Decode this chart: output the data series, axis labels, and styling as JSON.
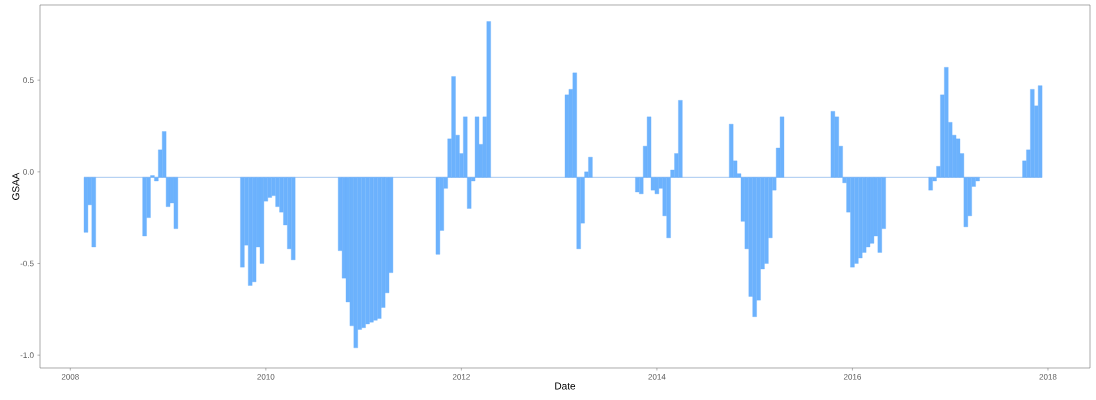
{
  "chart_data": {
    "type": "bar",
    "xlabel": "Date",
    "ylabel": "GSAA",
    "color": "#6cb2fd",
    "xlim": [
      2007.69,
      2018.43
    ],
    "ylim": [
      -1.07,
      0.91
    ],
    "xticks": [
      2008,
      2010,
      2012,
      2014,
      2016,
      2018
    ],
    "yticks": [
      {
        "value": -1,
        "label": "-1.0"
      },
      {
        "value": -0.5,
        "label": "-0.5"
      },
      {
        "value": 0,
        "label": "0.0"
      },
      0.5
    ],
    "ref_lines": [
      {
        "axis": "y",
        "value": -0.03,
        "color": "#6ca4e8"
      }
    ],
    "x": [
      2008.16,
      2008.2,
      2008.24,
      2008.76,
      2008.8,
      2008.84,
      2008.88,
      2008.92,
      2008.96,
      2009.0,
      2009.04,
      2009.08,
      2009.76,
      2009.8,
      2009.84,
      2009.88,
      2009.92,
      2009.96,
      2010.0,
      2010.04,
      2010.08,
      2010.12,
      2010.16,
      2010.2,
      2010.24,
      2010.28,
      2010.76,
      2010.8,
      2010.84,
      2010.88,
      2010.92,
      2010.96,
      2011.0,
      2011.04,
      2011.08,
      2011.12,
      2011.16,
      2011.2,
      2011.24,
      2011.28,
      2011.76,
      2011.8,
      2011.84,
      2011.88,
      2011.92,
      2011.96,
      2012.0,
      2012.04,
      2012.08,
      2012.12,
      2012.16,
      2012.2,
      2012.24,
      2012.28,
      2013.08,
      2013.12,
      2013.16,
      2013.2,
      2013.24,
      2013.28,
      2013.32,
      2013.8,
      2013.84,
      2013.88,
      2013.92,
      2013.96,
      2014.0,
      2014.04,
      2014.08,
      2014.12,
      2014.16,
      2014.2,
      2014.24,
      2014.76,
      2014.8,
      2014.84,
      2014.88,
      2014.92,
      2014.96,
      2015.0,
      2015.04,
      2015.08,
      2015.12,
      2015.16,
      2015.2,
      2015.24,
      2015.28,
      2015.8,
      2015.84,
      2015.88,
      2015.92,
      2015.96,
      2016.0,
      2016.04,
      2016.08,
      2016.12,
      2016.16,
      2016.2,
      2016.24,
      2016.28,
      2016.32,
      2016.8,
      2016.84,
      2016.88,
      2016.92,
      2016.96,
      2017.0,
      2017.04,
      2017.08,
      2017.12,
      2017.16,
      2017.2,
      2017.24,
      2017.28,
      2017.76,
      2017.8,
      2017.84,
      2017.88,
      2017.92
    ],
    "values": [
      -0.3,
      -0.15,
      -0.38,
      -0.32,
      -0.22,
      0.01,
      -0.02,
      0.15,
      0.25,
      -0.16,
      -0.14,
      -0.28,
      -0.49,
      -0.37,
      -0.59,
      -0.57,
      -0.38,
      -0.47,
      -0.13,
      -0.11,
      -0.1,
      -0.16,
      -0.19,
      -0.26,
      -0.39,
      -0.45,
      -0.4,
      -0.55,
      -0.68,
      -0.81,
      -0.93,
      -0.83,
      -0.82,
      -0.8,
      -0.79,
      -0.78,
      -0.77,
      -0.71,
      -0.63,
      -0.52,
      -0.42,
      -0.29,
      -0.06,
      0.21,
      0.55,
      0.23,
      0.13,
      0.33,
      -0.17,
      -0.02,
      0.33,
      0.18,
      0.33,
      0.85,
      0.45,
      0.48,
      0.57,
      -0.39,
      -0.25,
      0.03,
      0.11,
      -0.08,
      -0.09,
      0.17,
      0.33,
      -0.07,
      -0.09,
      -0.06,
      -0.21,
      -0.33,
      0.04,
      0.13,
      0.42,
      0.29,
      0.09,
      0.02,
      -0.24,
      -0.39,
      -0.65,
      -0.76,
      -0.67,
      -0.5,
      -0.47,
      -0.33,
      -0.07,
      0.16,
      0.33,
      0.36,
      0.33,
      0.17,
      -0.03,
      -0.19,
      -0.49,
      -0.47,
      -0.44,
      -0.41,
      -0.38,
      -0.36,
      -0.32,
      -0.41,
      -0.28,
      -0.07,
      -0.02,
      0.06,
      0.45,
      0.6,
      0.3,
      0.23,
      0.21,
      0.13,
      -0.27,
      -0.21,
      -0.05,
      -0.02,
      0.09,
      0.15,
      0.48,
      0.39,
      0.5
    ],
    "base": [
      -0.03,
      -0.03,
      -0.03,
      -0.03,
      -0.03,
      -0.03,
      -0.03,
      -0.03,
      -0.03,
      -0.03,
      -0.03,
      -0.03,
      -0.03,
      -0.03,
      -0.03,
      -0.03,
      -0.03,
      -0.03,
      -0.03,
      -0.03,
      -0.03,
      -0.03,
      -0.03,
      -0.03,
      -0.03,
      -0.03,
      -0.03,
      -0.03,
      -0.03,
      -0.03,
      -0.03,
      -0.03,
      -0.03,
      -0.03,
      -0.03,
      -0.03,
      -0.03,
      -0.03,
      -0.03,
      -0.03,
      -0.03,
      -0.03,
      -0.03,
      -0.03,
      -0.03,
      -0.03,
      -0.03,
      -0.03,
      -0.03,
      -0.03,
      -0.03,
      -0.03,
      -0.03,
      -0.03,
      -0.03,
      -0.03,
      -0.03,
      -0.03,
      -0.03,
      -0.03,
      -0.03,
      -0.03,
      -0.03,
      -0.03,
      -0.03,
      -0.03,
      -0.03,
      -0.03,
      -0.03,
      -0.03,
      -0.03,
      -0.03,
      -0.03,
      -0.03,
      -0.03,
      -0.03,
      -0.03,
      -0.03,
      -0.03,
      -0.03,
      -0.03,
      -0.03,
      -0.03,
      -0.03,
      -0.03,
      -0.03,
      -0.03,
      -0.03,
      -0.03,
      -0.03,
      -0.03,
      -0.03,
      -0.03,
      -0.03,
      -0.03,
      -0.03,
      -0.03,
      -0.03,
      -0.03,
      -0.03,
      -0.03,
      -0.03,
      -0.03,
      -0.03,
      -0.03,
      -0.03,
      -0.03,
      -0.03,
      -0.03,
      -0.03,
      -0.03,
      -0.03,
      -0.03,
      -0.03,
      -0.03,
      -0.03,
      -0.03,
      -0.03,
      -0.03
    ]
  }
}
